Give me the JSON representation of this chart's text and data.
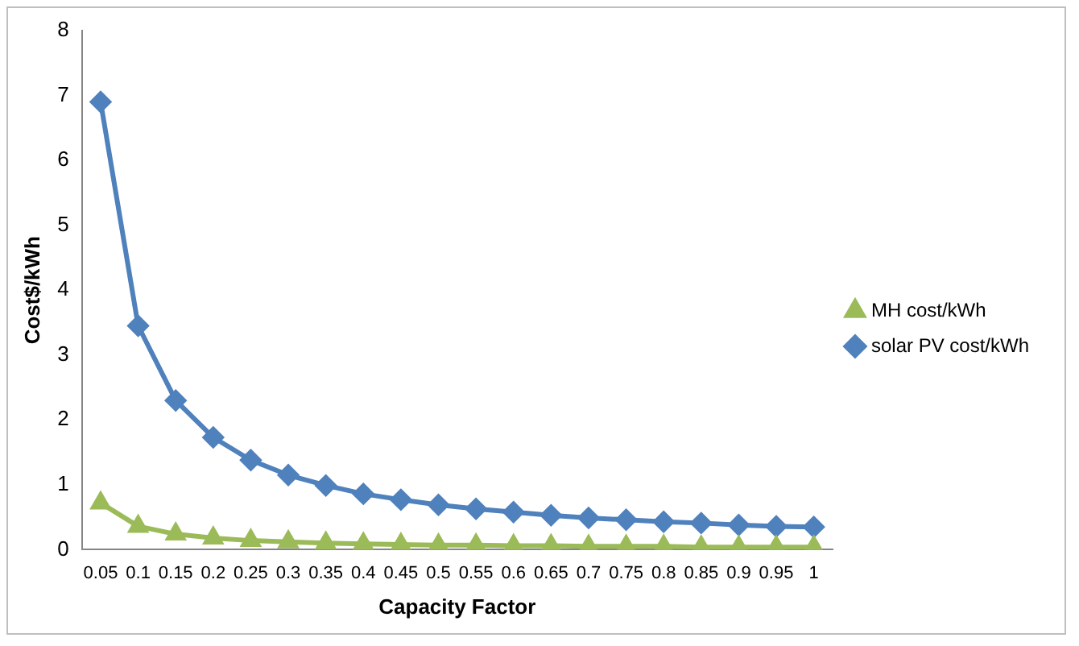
{
  "chart_data": {
    "type": "line",
    "xlabel": "Capacity Factor",
    "ylabel": "Cost$/kWh",
    "categories": [
      "0.05",
      "0.1",
      "0.15",
      "0.2",
      "0.25",
      "0.3",
      "0.35",
      "0.4",
      "0.45",
      "0.5",
      "0.55",
      "0.6",
      "0.65",
      "0.7",
      "0.75",
      "0.8",
      "0.85",
      "0.9",
      "0.95",
      "1"
    ],
    "series": [
      {
        "name": "MH cost/kWh",
        "color": "#9bbb59",
        "marker": "triangle",
        "values": [
          0.72,
          0.36,
          0.24,
          0.18,
          0.14,
          0.12,
          0.1,
          0.09,
          0.08,
          0.07,
          0.07,
          0.06,
          0.06,
          0.05,
          0.05,
          0.05,
          0.04,
          0.04,
          0.04,
          0.04
        ]
      },
      {
        "name": "solar PV cost/kWh",
        "color": "#4f81bd",
        "marker": "diamond",
        "values": [
          6.9,
          3.45,
          2.3,
          1.73,
          1.38,
          1.15,
          0.99,
          0.86,
          0.77,
          0.69,
          0.63,
          0.58,
          0.53,
          0.49,
          0.46,
          0.43,
          0.41,
          0.38,
          0.36,
          0.35
        ]
      }
    ],
    "ylim": [
      0,
      8
    ],
    "yticks": [
      0,
      1,
      2,
      3,
      4,
      5,
      6,
      7,
      8
    ],
    "grid": false,
    "legend": "right",
    "line_style": "solid"
  }
}
